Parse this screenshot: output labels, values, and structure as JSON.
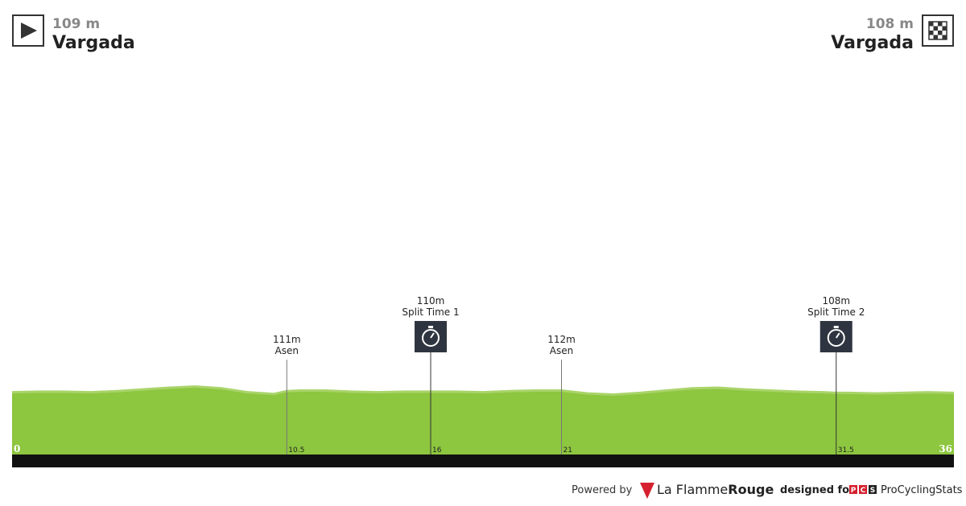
{
  "start": {
    "elevation": "109 m",
    "name": "Vargada"
  },
  "finish": {
    "elevation": "108 m",
    "name": "Vargada"
  },
  "chart_data": {
    "type": "area",
    "color": "#8dc63f",
    "x": [
      0,
      1,
      2,
      3,
      4,
      5,
      6,
      7,
      8,
      9,
      10,
      10.5,
      11,
      12,
      13,
      14,
      15,
      16,
      17,
      18,
      19,
      20,
      21,
      22,
      23,
      24,
      25,
      26,
      27,
      28,
      29,
      30,
      31,
      31.5,
      32,
      33,
      34,
      35,
      36
    ],
    "series": [
      {
        "name": "Elevation",
        "color": "#8dc63f",
        "values": [
          109,
          110,
          110,
          109,
          111,
          114,
          117,
          119,
          116,
          109,
          106,
          111,
          112,
          112,
          110,
          109,
          110,
          110,
          110,
          109,
          111,
          112,
          112,
          107,
          105,
          108,
          112,
          116,
          117,
          114,
          112,
          110,
          109,
          108,
          108,
          107,
          108,
          109,
          108
        ]
      }
    ],
    "xlim": [
      0,
      36
    ],
    "ylim": [
      0,
      775
    ],
    "xticks": [
      0,
      10.5,
      16,
      21,
      31.5,
      36
    ],
    "markers": [
      {
        "km": 10.5,
        "label": "111m",
        "name": "Asen",
        "split": false
      },
      {
        "km": 16,
        "label": "110m",
        "name": "Split Time 1",
        "split": true
      },
      {
        "km": 21,
        "label": "112m",
        "name": "Asen",
        "split": false
      },
      {
        "km": 31.5,
        "label": "108m",
        "name": "Split Time 2",
        "split": true
      }
    ]
  },
  "footer": {
    "powered": "Powered by",
    "brand_a": "La Flamme",
    "brand_b": "Rouge",
    "designed": "designed for",
    "pcs_logo": [
      "P",
      "C",
      "S"
    ],
    "pcs": "ProCyclingStats"
  }
}
